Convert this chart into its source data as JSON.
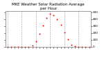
{
  "title": "MKE Weather Solar Radiation Average\nper Hour",
  "hours": [
    0,
    1,
    2,
    3,
    4,
    5,
    6,
    7,
    8,
    9,
    10,
    11,
    12,
    13,
    14,
    15,
    16,
    17,
    18,
    19,
    20,
    21,
    22,
    23
  ],
  "solar": [
    0,
    0,
    0,
    0,
    0,
    0,
    2,
    18,
    80,
    190,
    310,
    420,
    480,
    460,
    400,
    320,
    210,
    110,
    30,
    5,
    0,
    0,
    0,
    0
  ],
  "dot_color": "#ff0000",
  "bg_color": "#ffffff",
  "grid_color": "#999999",
  "title_color": "#000000",
  "ylim": [
    0,
    520
  ],
  "yticks": [
    0,
    100,
    200,
    300,
    400,
    500
  ],
  "xticks": [
    0,
    1,
    2,
    3,
    4,
    5,
    6,
    7,
    8,
    9,
    10,
    11,
    12,
    13,
    14,
    15,
    16,
    17,
    18,
    19,
    20,
    21,
    22,
    23
  ],
  "xlabels_row1": [
    "1",
    "",
    "",
    "",
    "5",
    "",
    "",
    "",
    "1",
    "",
    "",
    "",
    "5",
    "",
    "",
    "",
    "1",
    "",
    "",
    "",
    "5",
    "",
    "",
    ""
  ],
  "xlabels_row2": [
    "2",
    "3",
    "4",
    "5",
    "6",
    "7",
    "8",
    "9",
    "0",
    "1",
    "2",
    "3",
    "4",
    "5",
    "6",
    "7",
    "8",
    "9",
    "0",
    "1",
    "2",
    "3",
    "4",
    "5"
  ],
  "vgrid_hours": [
    0,
    4,
    8,
    12,
    16,
    20
  ],
  "title_fontsize": 4.0,
  "tick_fontsize": 3.0,
  "dot_size": 2.0,
  "right_yticks": [
    0,
    100,
    200,
    300,
    400,
    500
  ]
}
